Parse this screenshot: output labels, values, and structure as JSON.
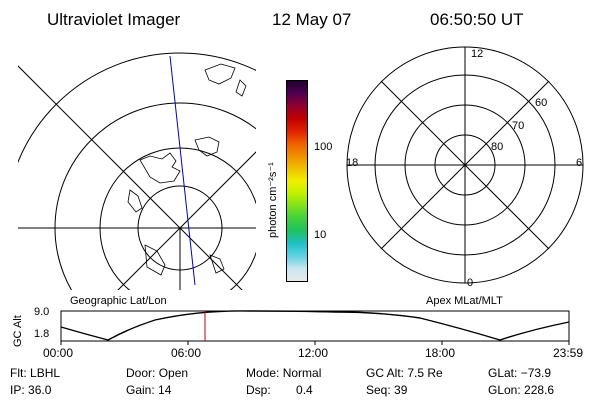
{
  "header": {
    "instrument": "Ultraviolet Imager",
    "date": "12 May 07",
    "time": "06:50:50 UT"
  },
  "colorbar": {
    "unit_label": "photon cm⁻²s⁻¹",
    "ticks": [
      "100",
      "10"
    ],
    "colors": [
      "#e8e8e8",
      "#c8e8f0",
      "#60d0e0",
      "#20c0c8",
      "#20c060",
      "#40d040",
      "#80e020",
      "#c0f000",
      "#f0f000",
      "#f0c000",
      "#f09000",
      "#f06000",
      "#e02000",
      "#c00000",
      "#900030",
      "#500050",
      "#200030"
    ]
  },
  "left_map": {
    "label": "Geographic Lat/Lon"
  },
  "right_map": {
    "label": "Apex  MLat/MLT",
    "mlt_labels": {
      "top": "12",
      "left": "18",
      "right": "6",
      "bottom": "0"
    },
    "lat_labels": [
      "60",
      "70",
      "80"
    ]
  },
  "timeline": {
    "ylabel": "GC Alt",
    "y_ticks": [
      "9.0",
      "1.8"
    ],
    "x_ticks": [
      "00:00",
      "06:00",
      "12:00",
      "18:00",
      "23:59"
    ],
    "marker_color": "#c00000"
  },
  "info": {
    "row1": [
      {
        "key": "Flt:",
        "val": "LBHL"
      },
      {
        "key": "Door:",
        "val": "Open"
      },
      {
        "key": "Mode:",
        "val": "Normal"
      },
      {
        "key": "GC Alt:",
        "val": "7.5 Re"
      },
      {
        "key": "GLat:",
        "val": "−73.9"
      }
    ],
    "row2": [
      {
        "key": "IP:",
        "val": "36.0"
      },
      {
        "key": "Gain:",
        "val": "14"
      },
      {
        "key": "Dsp:",
        "val": "0.4"
      },
      {
        "key": "Seq:",
        "val": "39"
      },
      {
        "key": "GLon:",
        "val": "228.6"
      }
    ]
  }
}
